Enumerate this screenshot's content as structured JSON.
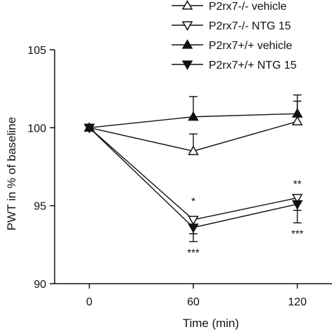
{
  "chart_data": {
    "type": "line",
    "x": [
      0,
      60,
      120
    ],
    "xlabel": "Time (min)",
    "ylabel": "PWT in % of baseline",
    "xlim": [
      -20,
      140
    ],
    "ylim": [
      90,
      105
    ],
    "x_ticks": [
      0,
      60,
      120
    ],
    "y_ticks": [
      90,
      95,
      100,
      105
    ],
    "grid": false,
    "legend_position": "top-right",
    "series": [
      {
        "name": "P2rx7-/- vehicle",
        "marker": "triangle-up-open",
        "values": [
          100,
          98.5,
          100.4
        ],
        "err": [
          0,
          1.1,
          1.3
        ]
      },
      {
        "name": "P2rx7-/- NTG 15",
        "marker": "triangle-down-open",
        "values": [
          100,
          94.1,
          95.5
        ],
        "err": [
          0,
          0.9,
          0.8
        ]
      },
      {
        "name": "P2rx7+/+ vehicle",
        "marker": "triangle-up-filled",
        "values": [
          100,
          100.7,
          100.9
        ],
        "err": [
          0,
          1.3,
          1.2
        ]
      },
      {
        "name": "P2rx7+/+ NTG 15",
        "marker": "triangle-down-filled",
        "values": [
          100,
          93.6,
          95.1
        ],
        "err": [
          0,
          0.9,
          1.2
        ]
      }
    ],
    "annotations": [
      {
        "text": "*",
        "x": 60,
        "y": 95.3
      },
      {
        "text": "***",
        "x": 60,
        "y": 92.0
      },
      {
        "text": "**",
        "x": 120,
        "y": 96.4
      },
      {
        "text": "***",
        "x": 120,
        "y": 93.2
      }
    ]
  }
}
